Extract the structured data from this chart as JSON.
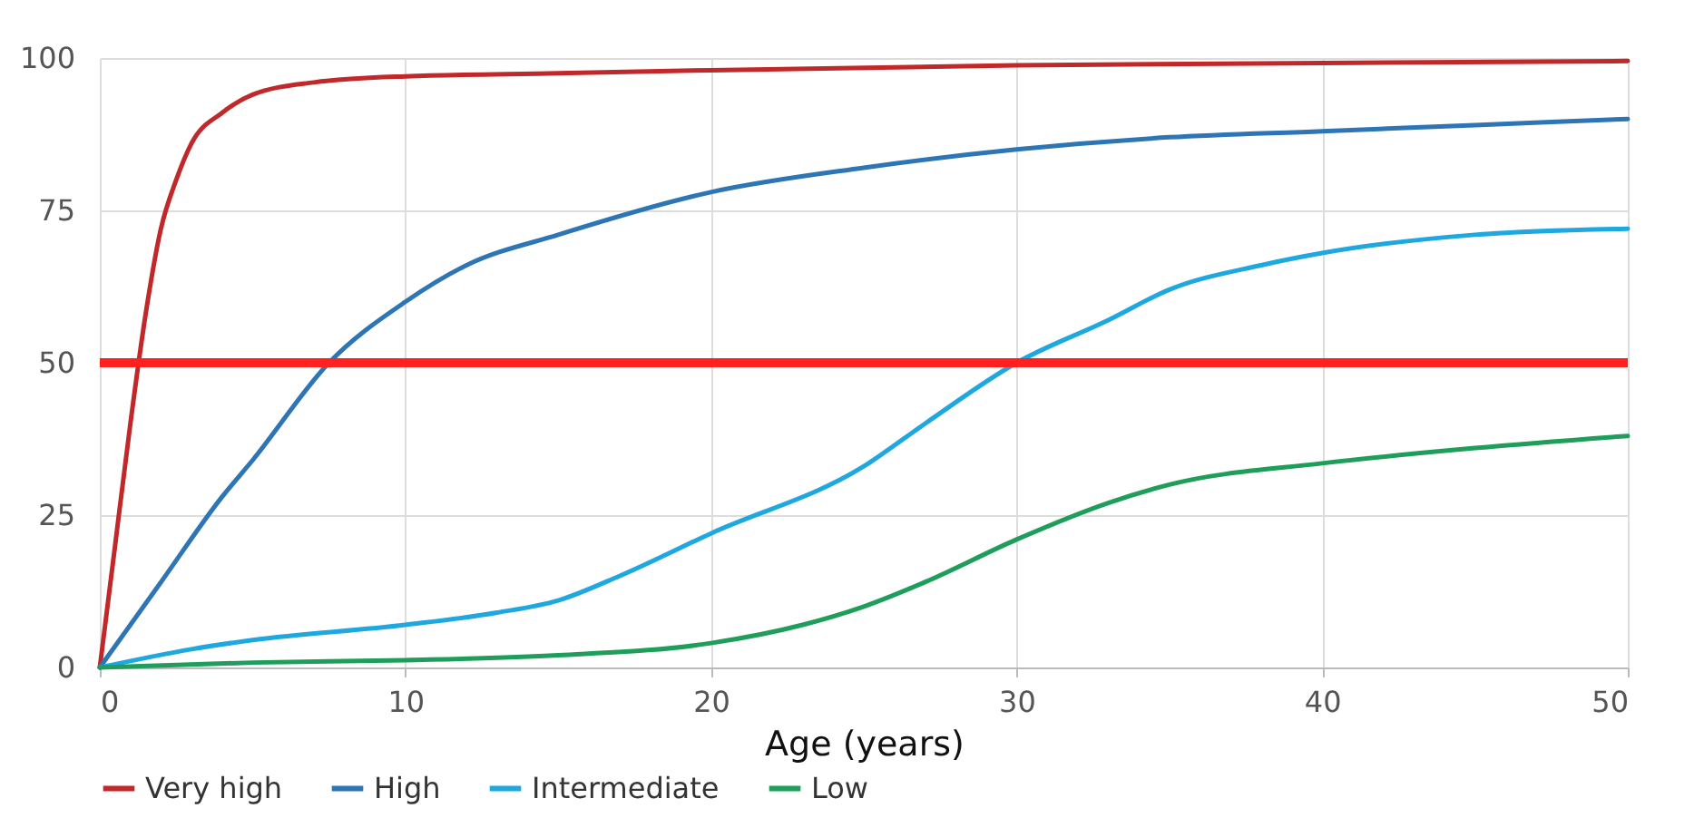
{
  "chart_data": {
    "type": "line",
    "xlabel": "Age (years)",
    "xlim": [
      0,
      50
    ],
    "xticks": [
      0,
      10,
      20,
      30,
      40,
      50
    ],
    "ylim": [
      0,
      100
    ],
    "yticks": [
      0,
      25,
      50,
      75,
      100
    ],
    "grid": true,
    "legend": "bottom",
    "marker": "none",
    "line_style": "solid",
    "series": [
      {
        "name": "Very high",
        "color": "#c0282a",
        "x": [
          0,
          0.5,
          1,
          1.5,
          2,
          2.5,
          3,
          4,
          5,
          7,
          10,
          15,
          20,
          30,
          40,
          50
        ],
        "values": [
          0,
          20,
          40,
          58,
          72,
          80,
          86,
          91,
          94,
          96,
          97,
          97.5,
          98,
          98.8,
          99.2,
          99.5
        ]
      },
      {
        "name": "High",
        "color": "#2e75b6",
        "x": [
          0,
          2,
          4,
          5,
          7.5,
          10,
          12,
          15,
          20,
          25,
          30,
          35,
          40,
          45,
          50
        ],
        "values": [
          0,
          14,
          28,
          34,
          50,
          60,
          66,
          71,
          78,
          82,
          85,
          87,
          88,
          89,
          90
        ]
      },
      {
        "name": "Intermediate",
        "color": "#1fa8e0",
        "x": [
          0,
          3,
          5,
          10,
          13,
          15,
          17,
          20,
          25,
          27,
          30,
          33,
          35,
          38,
          40,
          45,
          50
        ],
        "values": [
          0,
          3,
          4.5,
          7,
          9,
          11,
          15,
          22,
          33,
          40,
          50,
          57,
          62,
          66,
          68,
          71,
          72
        ]
      },
      {
        "name": "Low",
        "color": "#1e9e5a",
        "x": [
          0,
          5,
          10,
          15,
          20,
          23,
          25,
          27,
          30,
          33,
          35,
          40,
          45,
          50
        ],
        "values": [
          0,
          0.8,
          1.2,
          2,
          4,
          7,
          10,
          14,
          21,
          27,
          30,
          33.5,
          36,
          38
        ]
      }
    ],
    "ref_lines": [
      {
        "axis": "y",
        "value": 50,
        "color": "#ff2020"
      }
    ]
  }
}
